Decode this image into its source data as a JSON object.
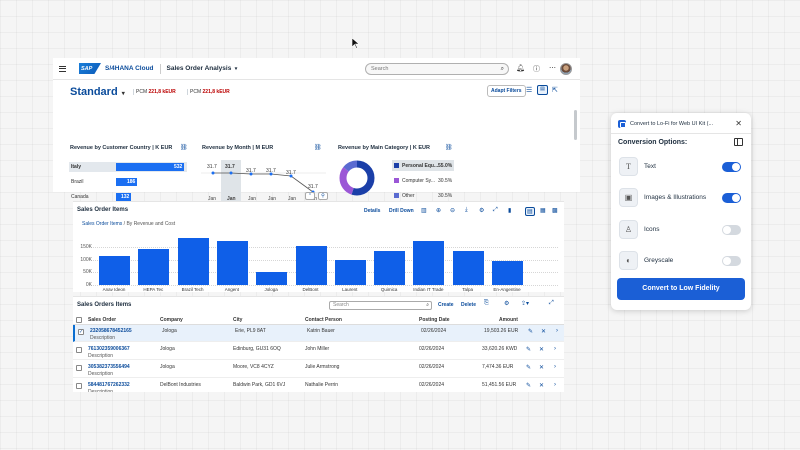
{
  "shell": {
    "logo_text": "SAP",
    "product": "S/4HANA Cloud",
    "app_title": "Sales Order Analysis",
    "search_placeholder": "Search"
  },
  "header": {
    "variant": "Standard",
    "kpis": [
      {
        "label": "PCM",
        "value": "221,8 kEUR"
      },
      {
        "label": "PCM",
        "value": "221,8 kEUR"
      }
    ],
    "adapt_filters": "Adapt Filters"
  },
  "charts": {
    "country": {
      "title": "Revenue by Customer Country | K EUR",
      "rows": [
        {
          "label": "Italy",
          "value": 532
        },
        {
          "label": "Brazil",
          "value": 186
        },
        {
          "label": "Canada",
          "value": 132
        }
      ]
    },
    "month": {
      "title": "Revenue by Month | M EUR",
      "values": [
        "31.7",
        "31.7",
        "31.7",
        "31.7",
        "31.7",
        "31.7"
      ],
      "x": [
        "Jan",
        "Jan",
        "Jan",
        "Jan",
        "Jan",
        "Jan"
      ]
    },
    "category": {
      "title": "Revenue by Main Category | K EUR",
      "legend": [
        {
          "label": "Personal Equ...",
          "pct": "55.0%",
          "color": "#1b3fa8"
        },
        {
          "label": "Computer Sy...",
          "pct": "30.5%",
          "color": "#9b57d6"
        },
        {
          "label": "Other",
          "pct": "30.5%",
          "color": "#5a6bd1"
        }
      ]
    }
  },
  "items_chart": {
    "title": "Sales Order Items",
    "details": "Details",
    "drill_down": "Drill Down",
    "breadcrumb_link": "Sales Order Items",
    "breadcrumb_rest": " / By Revenue and Cost"
  },
  "chart_data": {
    "type": "bar",
    "categories": [
      "Anav Ideon",
      "HEPA Tec",
      "Brazil Tech",
      "Angent",
      "Jologa",
      "DelBont",
      "Laurent",
      "Quimica",
      "Indian IT Trade",
      "Talpa",
      "En-Angentine"
    ],
    "values": [
      103,
      125,
      166,
      153,
      44,
      138,
      86,
      118,
      153,
      120,
      83
    ],
    "yticks": [
      "150K",
      "100K",
      "50K",
      "0K"
    ],
    "ylim": [
      0,
      175
    ],
    "xlabel": "",
    "ylabel": ""
  },
  "table": {
    "title": "Sales Orders Items",
    "search_placeholder": "Search",
    "create": "Create",
    "delete": "Delete",
    "columns": [
      "Sales Order",
      "Company",
      "City",
      "Contact Person",
      "Posting Date",
      "Amount"
    ],
    "rows": [
      {
        "so": "232058678452165",
        "desc": "Description",
        "company": "Jologa",
        "city": "Erie, PL9 8AT",
        "contact": "Katrin Bauer",
        "date": "02/26/2024",
        "amount": "19,503.26 EUR",
        "selected": true
      },
      {
        "so": "761302359006367",
        "desc": "Description",
        "company": "Jologa",
        "city": "Edinburg, GU31 6OQ",
        "contact": "John Miller",
        "date": "02/26/2024",
        "amount": "33,620.26 KWD",
        "selected": false
      },
      {
        "so": "305382373556494",
        "desc": "Description",
        "company": "Jologa",
        "city": "Moore, VC8 4CYZ",
        "contact": "Julie Armstrong",
        "date": "02/26/2024",
        "amount": "7,474.36 EUR",
        "selected": false
      },
      {
        "so": "584481767262332",
        "desc": "Description",
        "company": "DelBont Industries",
        "city": "Baldwin Park, GD1 6VJ",
        "contact": "Nathalie Perrin",
        "date": "02/26/2024",
        "amount": "51,451.56 EUR",
        "selected": false
      }
    ]
  },
  "panel": {
    "title": "Convert to Lo-Fi for Web UI Kit (...",
    "options_title": "Conversion Options:",
    "options": [
      {
        "label": "Text",
        "icon": "text-icon",
        "on": true
      },
      {
        "label": "Images & Illustrations",
        "icon": "image-icon",
        "on": true
      },
      {
        "label": "Icons",
        "icon": "person-icon",
        "on": false
      },
      {
        "label": "Greyscale",
        "icon": "palette-icon",
        "on": false
      }
    ],
    "convert_label": "Convert to Low Fidelity"
  }
}
